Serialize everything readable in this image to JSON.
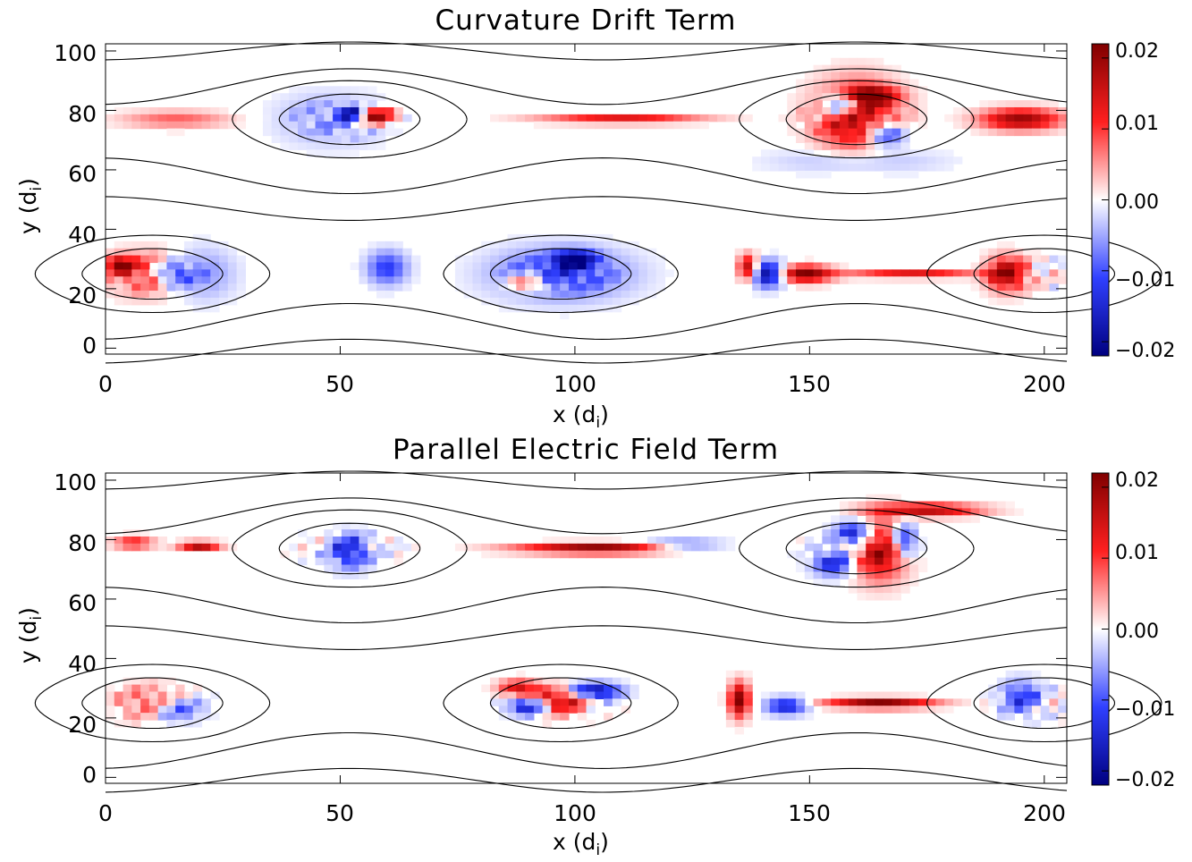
{
  "colors": {
    "negative": "#000080",
    "mid_negative": "#3040ff",
    "zero": "#ffffff",
    "mid_positive": "#ff2020",
    "positive": "#800000",
    "contour": "#000000"
  },
  "chart_data": [
    {
      "type": "heatmap",
      "title": "Curvature Drift Term",
      "xlabel": "x (d",
      "xlabel_sub": "i",
      "xlabel_end": ")",
      "ylabel": "y (d",
      "ylabel_sub": "i",
      "ylabel_end": ")",
      "xlim": [
        0,
        204.8
      ],
      "ylim": [
        -2,
        102.4
      ],
      "xticks": [
        0,
        50,
        100,
        150,
        200
      ],
      "xtick_labels": [
        "0",
        "50",
        "100",
        "150",
        "200"
      ],
      "yticks": [
        0,
        20,
        40,
        60,
        80,
        100
      ],
      "ytick_labels": [
        "0",
        "20",
        "40",
        "60",
        "80",
        "100"
      ],
      "colorbar": {
        "range": [
          -0.022,
          0.022
        ],
        "ticks": [
          0.02,
          0.01,
          0.0,
          -0.01,
          -0.02
        ],
        "tick_labels": [
          "0.02",
          "0.01",
          "0.00",
          "−0.01",
          "−0.02"
        ]
      },
      "contours": "magnetic flux surfaces (field lines) overlaid in black",
      "magnetic_islands": [
        {
          "x_center": 52,
          "y_center": 77
        },
        {
          "x_center": 160,
          "y_center": 77
        },
        {
          "x_center": 10,
          "y_center": 25
        },
        {
          "x_center": 97,
          "y_center": 25
        },
        {
          "x_center": 200,
          "y_center": 25
        }
      ],
      "x_points": [
        {
          "x": 20,
          "y": 77
        },
        {
          "x": 110,
          "y": 77
        },
        {
          "x": 50,
          "y": 25
        },
        {
          "x": 140,
          "y": 25
        }
      ],
      "features": [
        {
          "x": 58,
          "y": 78,
          "amp": 0.022,
          "sx": 2.5,
          "sy": 2
        },
        {
          "x": 52,
          "y": 79,
          "amp": -0.02,
          "sx": 1.5,
          "sy": 1.5
        },
        {
          "x": 48,
          "y": 77,
          "amp": -0.006,
          "sx": 8,
          "sy": 6
        },
        {
          "x": 15,
          "y": 77,
          "amp": 0.008,
          "sx": 8,
          "sy": 2
        },
        {
          "x": 110,
          "y": 77,
          "amp": 0.015,
          "sx": 12,
          "sy": 1
        },
        {
          "x": 160,
          "y": 78,
          "amp": 0.02,
          "sx": 6,
          "sy": 8
        },
        {
          "x": 157,
          "y": 82,
          "amp": -0.02,
          "sx": 3,
          "sy": 3
        },
        {
          "x": 166,
          "y": 72,
          "amp": -0.018,
          "sx": 3,
          "sy": 3
        },
        {
          "x": 163,
          "y": 85,
          "amp": 0.018,
          "sx": 4,
          "sy": 2
        },
        {
          "x": 195,
          "y": 77,
          "amp": 0.02,
          "sx": 6,
          "sy": 2.5
        },
        {
          "x": 160,
          "y": 63,
          "amp": -0.005,
          "sx": 12,
          "sy": 3
        },
        {
          "x": 10,
          "y": 25,
          "amp": 0.012,
          "sx": 6,
          "sy": 5
        },
        {
          "x": 3,
          "y": 28,
          "amp": 0.02,
          "sx": 2,
          "sy": 2
        },
        {
          "x": 14,
          "y": 25,
          "amp": -0.015,
          "sx": 3,
          "sy": 3
        },
        {
          "x": 20,
          "y": 25,
          "amp": -0.008,
          "sx": 5,
          "sy": 6
        },
        {
          "x": 97,
          "y": 25,
          "amp": -0.012,
          "sx": 10,
          "sy": 6
        },
        {
          "x": 90,
          "y": 22,
          "amp": 0.015,
          "sx": 3,
          "sy": 2
        },
        {
          "x": 100,
          "y": 30,
          "amp": -0.02,
          "sx": 3,
          "sy": 2
        },
        {
          "x": 60,
          "y": 27,
          "amp": -0.012,
          "sx": 3,
          "sy": 4
        },
        {
          "x": 137,
          "y": 27,
          "amp": 0.02,
          "sx": 1.5,
          "sy": 3
        },
        {
          "x": 141,
          "y": 25,
          "amp": -0.022,
          "sx": 2.5,
          "sy": 3
        },
        {
          "x": 149,
          "y": 25,
          "amp": 0.022,
          "sx": 4,
          "sy": 2
        },
        {
          "x": 172,
          "y": 25,
          "amp": 0.014,
          "sx": 10,
          "sy": 1
        },
        {
          "x": 192,
          "y": 25,
          "amp": 0.02,
          "sx": 3,
          "sy": 4
        }
      ]
    },
    {
      "type": "heatmap",
      "title": "Parallel Electric Field Term",
      "xlabel": "x (d",
      "xlabel_sub": "i",
      "xlabel_end": ")",
      "ylabel": "y (d",
      "ylabel_sub": "i",
      "ylabel_end": ")",
      "xlim": [
        0,
        204.8
      ],
      "ylim": [
        -2,
        102.4
      ],
      "xticks": [
        0,
        50,
        100,
        150,
        200
      ],
      "xtick_labels": [
        "0",
        "50",
        "100",
        "150",
        "200"
      ],
      "yticks": [
        0,
        20,
        40,
        60,
        80,
        100
      ],
      "ytick_labels": [
        "0",
        "20",
        "40",
        "60",
        "80",
        "100"
      ],
      "colorbar": {
        "range": [
          -0.022,
          0.022
        ],
        "ticks": [
          0.02,
          0.01,
          0.0,
          -0.01,
          -0.02
        ],
        "tick_labels": [
          "0.02",
          "0.01",
          "0.00",
          "−0.01",
          "−0.02"
        ]
      },
      "contours": "magnetic flux surfaces (field lines) overlaid in black",
      "magnetic_islands": [
        {
          "x_center": 52,
          "y_center": 77
        },
        {
          "x_center": 160,
          "y_center": 77
        },
        {
          "x_center": 10,
          "y_center": 25
        },
        {
          "x_center": 97,
          "y_center": 25
        },
        {
          "x_center": 200,
          "y_center": 25
        }
      ],
      "x_points": [
        {
          "x": 20,
          "y": 77
        },
        {
          "x": 110,
          "y": 77
        },
        {
          "x": 50,
          "y": 25
        },
        {
          "x": 140,
          "y": 25
        }
      ],
      "features": [
        {
          "x": 20,
          "y": 78,
          "amp": 0.02,
          "sx": 3,
          "sy": 1
        },
        {
          "x": 6,
          "y": 79,
          "amp": 0.012,
          "sx": 3,
          "sy": 1.5
        },
        {
          "x": 105,
          "y": 77,
          "amp": 0.022,
          "sx": 12,
          "sy": 1.2
        },
        {
          "x": 123,
          "y": 78,
          "amp": -0.01,
          "sx": 6,
          "sy": 1.5
        },
        {
          "x": 165,
          "y": 77,
          "amp": 0.02,
          "sx": 4,
          "sy": 7
        },
        {
          "x": 160,
          "y": 82,
          "amp": -0.02,
          "sx": 3,
          "sy": 3
        },
        {
          "x": 155,
          "y": 72,
          "amp": -0.015,
          "sx": 3,
          "sy": 3
        },
        {
          "x": 170,
          "y": 80,
          "amp": -0.018,
          "sx": 2,
          "sy": 4
        },
        {
          "x": 175,
          "y": 90,
          "amp": 0.018,
          "sx": 8,
          "sy": 1.5
        },
        {
          "x": 52,
          "y": 76,
          "amp": -0.015,
          "sx": 3,
          "sy": 4
        },
        {
          "x": 97,
          "y": 26,
          "amp": 0.018,
          "sx": 4,
          "sy": 3
        },
        {
          "x": 90,
          "y": 24,
          "amp": -0.018,
          "sx": 3,
          "sy": 2
        },
        {
          "x": 104,
          "y": 29,
          "amp": -0.02,
          "sx": 4,
          "sy": 2
        },
        {
          "x": 88,
          "y": 30,
          "amp": 0.015,
          "sx": 3,
          "sy": 2
        },
        {
          "x": 135,
          "y": 26,
          "amp": 0.022,
          "sx": 1.5,
          "sy": 4
        },
        {
          "x": 145,
          "y": 24,
          "amp": -0.016,
          "sx": 3,
          "sy": 2
        },
        {
          "x": 165,
          "y": 25,
          "amp": 0.022,
          "sx": 8,
          "sy": 1.2
        },
        {
          "x": 10,
          "y": 25,
          "amp": 0.01,
          "sx": 5,
          "sy": 4
        },
        {
          "x": 15,
          "y": 23,
          "amp": -0.012,
          "sx": 4,
          "sy": 3
        },
        {
          "x": 195,
          "y": 27,
          "amp": -0.012,
          "sx": 3,
          "sy": 4
        }
      ]
    }
  ]
}
